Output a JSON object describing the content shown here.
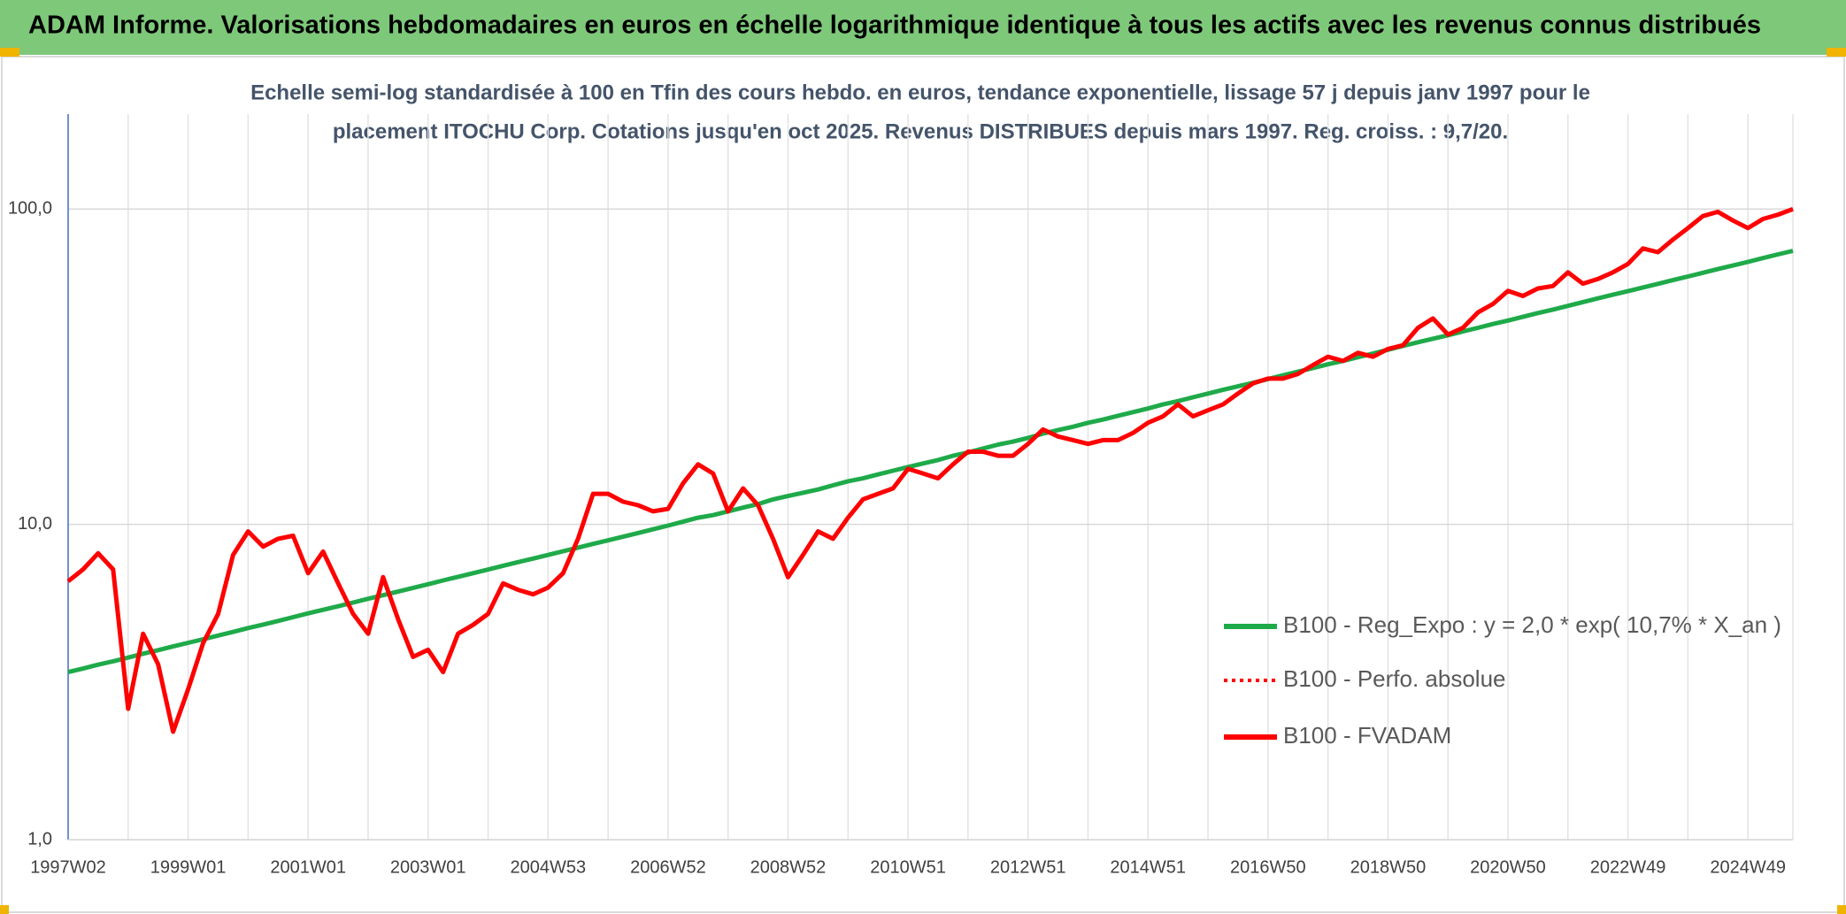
{
  "chart_data": {
    "type": "line",
    "header": "ADAM Informe. Valorisations hebdomadaires en euros en échelle logarithmique identique à tous les actifs avec les revenus connus distribués",
    "subtitle": [
      "Echelle semi-log standardisée à 100 en Tfin des cours hebdo. en euros, tendance exponentielle, lissage 57 j depuis janv 1997 pour le",
      "placement ITOCHU Corp. Cotations jusqu'en oct 2025. Revenus DISTRIBUES depuis mars 1997. Reg. croiss. : 9,7/20."
    ],
    "log_scale": true,
    "grid": true,
    "legend": "right",
    "ylim": [
      1,
      200
    ],
    "yticks": [
      {
        "value": 1,
        "label": "1,0"
      },
      {
        "value": 10,
        "label": "10,0"
      },
      {
        "value": 100,
        "label": "100,0"
      }
    ],
    "categories": [
      "1997W02",
      null,
      null,
      null,
      null,
      null,
      null,
      null,
      "1999W01",
      null,
      null,
      null,
      null,
      null,
      null,
      null,
      "2001W01",
      null,
      null,
      null,
      null,
      null,
      null,
      null,
      "2003W01",
      null,
      null,
      null,
      null,
      null,
      null,
      null,
      "2004W53",
      null,
      null,
      null,
      null,
      null,
      null,
      null,
      "2006W52",
      null,
      null,
      null,
      null,
      null,
      null,
      null,
      "2008W52",
      null,
      null,
      null,
      null,
      null,
      null,
      null,
      "2010W51",
      null,
      null,
      null,
      null,
      null,
      null,
      null,
      "2012W51",
      null,
      null,
      null,
      null,
      null,
      null,
      null,
      "2014W51",
      null,
      null,
      null,
      null,
      null,
      null,
      null,
      "2016W50",
      null,
      null,
      null,
      null,
      null,
      null,
      null,
      "2018W50",
      null,
      null,
      null,
      null,
      null,
      null,
      null,
      "2020W50",
      null,
      null,
      null,
      null,
      null,
      null,
      null,
      "2022W49",
      null,
      null,
      null,
      null,
      null,
      null,
      null,
      "2024W49",
      null,
      null,
      null
    ],
    "series": [
      {
        "name": "B100 - Reg_Expo : y = 2,0 * exp( 10,7% *  X_an )",
        "color": "#1faa4a",
        "dash": "solid",
        "values": [
          3.4,
          3.49,
          3.59,
          3.68,
          3.78,
          3.89,
          3.99,
          4.1,
          4.21,
          4.32,
          4.44,
          4.56,
          4.69,
          4.81,
          4.94,
          5.08,
          5.22,
          5.36,
          5.5,
          5.65,
          5.81,
          5.96,
          6.12,
          6.29,
          6.46,
          6.64,
          6.82,
          7.0,
          7.19,
          7.39,
          7.59,
          7.79,
          8.0,
          8.22,
          8.44,
          8.67,
          8.9,
          9.14,
          9.39,
          9.65,
          9.91,
          10.2,
          10.5,
          10.7,
          11.0,
          11.3,
          11.6,
          12.0,
          12.3,
          12.6,
          12.9,
          13.3,
          13.7,
          14.0,
          14.4,
          14.8,
          15.2,
          15.6,
          16.0,
          16.5,
          16.9,
          17.4,
          17.9,
          18.3,
          18.8,
          19.4,
          19.9,
          20.4,
          21.0,
          21.5,
          22.1,
          22.7,
          23.3,
          24.0,
          24.6,
          25.3,
          26.0,
          26.7,
          27.4,
          28.1,
          28.9,
          29.7,
          30.5,
          31.3,
          32.2,
          33.0,
          33.9,
          34.8,
          35.8,
          36.8,
          37.8,
          38.8,
          39.8,
          40.9,
          42.0,
          43.2,
          44.3,
          45.5,
          46.8,
          48.0,
          49.3,
          50.7,
          52.1,
          53.5,
          54.9,
          56.4,
          57.9,
          59.5,
          61.1,
          62.8,
          64.5,
          66.2,
          68.0,
          69.9,
          71.8,
          73.7
        ]
      },
      {
        "name": "B100 - Perfo. absolue",
        "color": "#ff0000",
        "dash": "dotted",
        "values": [
          6.6,
          7.2,
          8.1,
          7.2,
          2.6,
          4.5,
          3.6,
          2.2,
          3.0,
          4.2,
          5.2,
          8.0,
          9.5,
          8.5,
          9.0,
          9.2,
          7.0,
          8.2,
          6.5,
          5.2,
          4.5,
          6.8,
          5.0,
          3.8,
          4.0,
          3.4,
          4.5,
          4.8,
          5.2,
          6.5,
          6.2,
          6.0,
          6.3,
          7.0,
          9.0,
          12.5,
          12.5,
          11.8,
          11.5,
          11.0,
          11.2,
          13.5,
          15.5,
          14.5,
          11.0,
          13.0,
          11.5,
          9.0,
          6.8,
          8.0,
          9.5,
          9.0,
          10.5,
          12.0,
          12.5,
          13.0,
          15.0,
          14.5,
          14.0,
          15.5,
          17.0,
          17.0,
          16.5,
          16.5,
          18.0,
          20.0,
          19.0,
          18.5,
          18.0,
          18.5,
          18.5,
          19.5,
          21.0,
          22.0,
          24.0,
          22.0,
          23.0,
          24.0,
          26.0,
          28.0,
          29.0,
          29.0,
          30.0,
          32.0,
          34.0,
          33.0,
          35.0,
          34.0,
          36.0,
          37.0,
          42.0,
          45.0,
          40.0,
          42.0,
          47.0,
          50.0,
          55.0,
          53.0,
          56.0,
          57.0,
          63.0,
          58.0,
          60.0,
          63.0,
          67.0,
          75.0,
          73.0,
          80.0,
          87.0,
          95.0,
          98.0,
          92.0,
          87.0,
          93.0,
          96.0,
          100.0
        ]
      },
      {
        "name": "B100 - FVADAM",
        "color": "#ff0000",
        "dash": "solid",
        "values": [
          6.6,
          7.2,
          8.1,
          7.2,
          2.6,
          4.5,
          3.6,
          2.2,
          3.0,
          4.2,
          5.2,
          8.0,
          9.5,
          8.5,
          9.0,
          9.2,
          7.0,
          8.2,
          6.5,
          5.2,
          4.5,
          6.8,
          5.0,
          3.8,
          4.0,
          3.4,
          4.5,
          4.8,
          5.2,
          6.5,
          6.2,
          6.0,
          6.3,
          7.0,
          9.0,
          12.5,
          12.5,
          11.8,
          11.5,
          11.0,
          11.2,
          13.5,
          15.5,
          14.5,
          11.0,
          13.0,
          11.5,
          9.0,
          6.8,
          8.0,
          9.5,
          9.0,
          10.5,
          12.0,
          12.5,
          13.0,
          15.0,
          14.5,
          14.0,
          15.5,
          17.0,
          17.0,
          16.5,
          16.5,
          18.0,
          20.0,
          19.0,
          18.5,
          18.0,
          18.5,
          18.5,
          19.5,
          21.0,
          22.0,
          24.0,
          22.0,
          23.0,
          24.0,
          26.0,
          28.0,
          29.0,
          29.0,
          30.0,
          32.0,
          34.0,
          33.0,
          35.0,
          34.0,
          36.0,
          37.0,
          42.0,
          45.0,
          40.0,
          42.0,
          47.0,
          50.0,
          55.0,
          53.0,
          56.0,
          57.0,
          63.0,
          58.0,
          60.0,
          63.0,
          67.0,
          75.0,
          73.0,
          80.0,
          87.0,
          95.0,
          98.0,
          92.0,
          87.0,
          93.0,
          96.0,
          100.0
        ]
      }
    ]
  }
}
